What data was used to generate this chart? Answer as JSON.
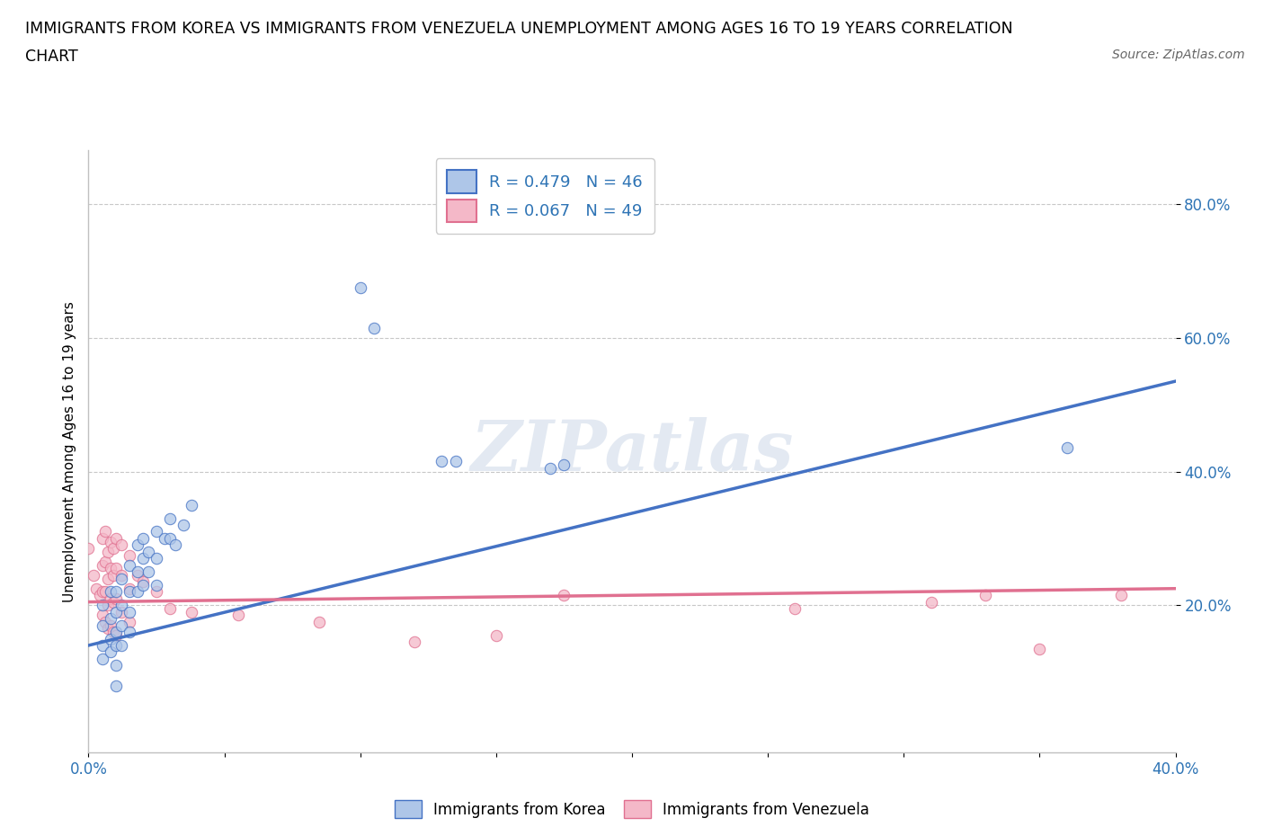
{
  "title_line1": "IMMIGRANTS FROM KOREA VS IMMIGRANTS FROM VENEZUELA UNEMPLOYMENT AMONG AGES 16 TO 19 YEARS CORRELATION",
  "title_line2": "CHART",
  "source_text": "Source: ZipAtlas.com",
  "ylabel": "Unemployment Among Ages 16 to 19 years",
  "ytick_values": [
    0.2,
    0.4,
    0.6,
    0.8
  ],
  "xlim": [
    0.0,
    0.4
  ],
  "ylim": [
    -0.02,
    0.88
  ],
  "korea_color": "#aec6e8",
  "korea_line_color": "#4472c4",
  "venezuela_color": "#f4b8c8",
  "venezuela_line_color": "#e07090",
  "legend_korea_label": "R = 0.479   N = 46",
  "legend_venezuela_label": "R = 0.067   N = 49",
  "watermark_text": "ZIPatlas",
  "axis_label_color": "#2e74b5",
  "korea_trend": [
    0.0,
    0.4,
    0.14,
    0.535
  ],
  "venezuela_trend": [
    0.0,
    0.4,
    0.205,
    0.225
  ],
  "korea_scatter": [
    [
      0.005,
      0.2
    ],
    [
      0.005,
      0.17
    ],
    [
      0.005,
      0.14
    ],
    [
      0.005,
      0.12
    ],
    [
      0.008,
      0.22
    ],
    [
      0.008,
      0.18
    ],
    [
      0.008,
      0.15
    ],
    [
      0.008,
      0.13
    ],
    [
      0.01,
      0.22
    ],
    [
      0.01,
      0.19
    ],
    [
      0.01,
      0.16
    ],
    [
      0.01,
      0.14
    ],
    [
      0.01,
      0.11
    ],
    [
      0.01,
      0.08
    ],
    [
      0.012,
      0.24
    ],
    [
      0.012,
      0.2
    ],
    [
      0.012,
      0.17
    ],
    [
      0.012,
      0.14
    ],
    [
      0.015,
      0.26
    ],
    [
      0.015,
      0.22
    ],
    [
      0.015,
      0.19
    ],
    [
      0.015,
      0.16
    ],
    [
      0.018,
      0.29
    ],
    [
      0.018,
      0.25
    ],
    [
      0.018,
      0.22
    ],
    [
      0.02,
      0.3
    ],
    [
      0.02,
      0.27
    ],
    [
      0.02,
      0.23
    ],
    [
      0.022,
      0.28
    ],
    [
      0.022,
      0.25
    ],
    [
      0.025,
      0.31
    ],
    [
      0.025,
      0.27
    ],
    [
      0.025,
      0.23
    ],
    [
      0.028,
      0.3
    ],
    [
      0.03,
      0.33
    ],
    [
      0.03,
      0.3
    ],
    [
      0.032,
      0.29
    ],
    [
      0.035,
      0.32
    ],
    [
      0.038,
      0.35
    ],
    [
      0.1,
      0.675
    ],
    [
      0.105,
      0.615
    ],
    [
      0.13,
      0.415
    ],
    [
      0.135,
      0.415
    ],
    [
      0.17,
      0.405
    ],
    [
      0.175,
      0.41
    ],
    [
      0.36,
      0.435
    ]
  ],
  "venezuela_scatter": [
    [
      0.0,
      0.285
    ],
    [
      0.002,
      0.245
    ],
    [
      0.003,
      0.225
    ],
    [
      0.004,
      0.215
    ],
    [
      0.005,
      0.3
    ],
    [
      0.005,
      0.26
    ],
    [
      0.005,
      0.22
    ],
    [
      0.005,
      0.185
    ],
    [
      0.006,
      0.31
    ],
    [
      0.006,
      0.265
    ],
    [
      0.006,
      0.22
    ],
    [
      0.006,
      0.175
    ],
    [
      0.007,
      0.28
    ],
    [
      0.007,
      0.24
    ],
    [
      0.007,
      0.2
    ],
    [
      0.007,
      0.165
    ],
    [
      0.008,
      0.295
    ],
    [
      0.008,
      0.255
    ],
    [
      0.008,
      0.21
    ],
    [
      0.008,
      0.17
    ],
    [
      0.009,
      0.285
    ],
    [
      0.009,
      0.245
    ],
    [
      0.009,
      0.205
    ],
    [
      0.009,
      0.16
    ],
    [
      0.01,
      0.3
    ],
    [
      0.01,
      0.255
    ],
    [
      0.01,
      0.21
    ],
    [
      0.01,
      0.155
    ],
    [
      0.012,
      0.29
    ],
    [
      0.012,
      0.245
    ],
    [
      0.012,
      0.19
    ],
    [
      0.015,
      0.275
    ],
    [
      0.015,
      0.225
    ],
    [
      0.015,
      0.175
    ],
    [
      0.018,
      0.245
    ],
    [
      0.02,
      0.235
    ],
    [
      0.025,
      0.22
    ],
    [
      0.03,
      0.195
    ],
    [
      0.038,
      0.19
    ],
    [
      0.055,
      0.185
    ],
    [
      0.085,
      0.175
    ],
    [
      0.12,
      0.145
    ],
    [
      0.15,
      0.155
    ],
    [
      0.175,
      0.215
    ],
    [
      0.26,
      0.195
    ],
    [
      0.31,
      0.205
    ],
    [
      0.33,
      0.215
    ],
    [
      0.35,
      0.135
    ],
    [
      0.38,
      0.215
    ]
  ]
}
